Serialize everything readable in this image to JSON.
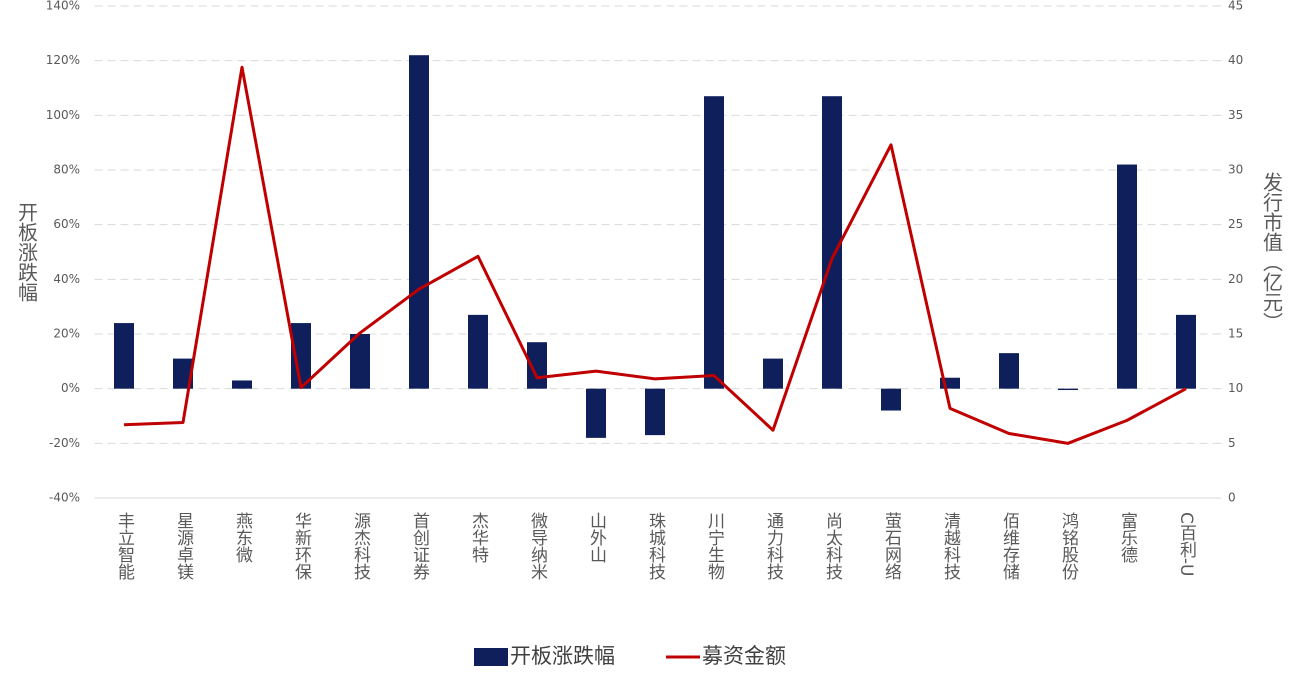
{
  "chart_data": {
    "type": "combo",
    "categories": [
      "丰立智能",
      "星源卓镁",
      "燕东微",
      "华新环保",
      "源杰科技",
      "首创证券",
      "杰华特",
      "微导纳米",
      "山外山",
      "珠城科技",
      "川宁生物",
      "通力科技",
      "尚太科技",
      "萤石网络",
      "清越科技",
      "佰维存储",
      "鸿铭股份",
      "富乐德",
      "C百利-U"
    ],
    "series": [
      {
        "name": "开板涨跌幅",
        "type": "bar",
        "color": "#0e1f5b",
        "values": [
          24,
          11,
          3,
          24,
          20,
          122,
          27,
          17,
          -18,
          -17,
          107,
          11,
          107,
          -8,
          4,
          13,
          -0.5,
          82,
          27
        ]
      },
      {
        "name": "募资金额",
        "type": "line",
        "axis": "y2",
        "color": "#c00000",
        "values": [
          6.7,
          6.9,
          39.4,
          10.1,
          15.1,
          19.1,
          22.1,
          11.0,
          11.6,
          10.9,
          11.2,
          6.2,
          21.9,
          32.3,
          8.2,
          5.9,
          5.0,
          7.1,
          10.0
        ]
      }
    ],
    "ylabel": "开板涨跌幅",
    "y2label": "发行市值（亿元）",
    "ylim": [
      -40,
      140
    ],
    "yticks": [
      {
        "value": -40,
        "label": "-40%"
      },
      {
        "value": -20,
        "label": "-20%"
      },
      {
        "value": 0,
        "label": "0%"
      },
      {
        "value": 20,
        "label": "20%"
      },
      {
        "value": 40,
        "label": "40%"
      },
      {
        "value": 60,
        "label": "60%"
      },
      {
        "value": 80,
        "label": "80%"
      },
      {
        "value": 100,
        "label": "100%"
      },
      {
        "value": 120,
        "label": "120%"
      },
      {
        "value": 140,
        "label": "140%"
      }
    ],
    "y2lim": [
      0,
      45
    ],
    "y2ticks": [
      0,
      5,
      10,
      15,
      20,
      25,
      30,
      35,
      40,
      45
    ],
    "grid": true,
    "legend": "bottom"
  }
}
